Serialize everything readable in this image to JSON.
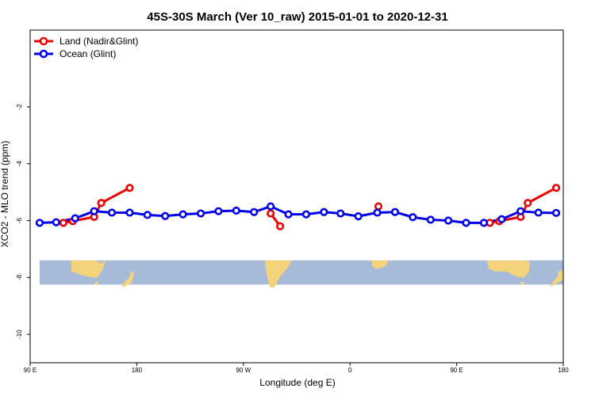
{
  "chart_data": {
    "type": "line",
    "title": "45S-30S March (Ver 10_raw)   2015-01-01 to 2020-12-31",
    "xlabel": "Longitude (deg E)",
    "ylabel": "XCO2 - MLO trend (ppm)",
    "xlim": [
      90,
      540
    ],
    "ylim": [
      -11,
      0.7
    ],
    "x_ticks": [
      {
        "value": 90,
        "label": "90 E"
      },
      {
        "value": 180,
        "label": "180"
      },
      {
        "value": 270,
        "label": "90 W"
      },
      {
        "value": 360,
        "label": "0"
      },
      {
        "value": 450,
        "label": "90 E"
      },
      {
        "value": 540,
        "label": "180"
      }
    ],
    "y_ticks": [
      {
        "value": -2,
        "label": "-2"
      },
      {
        "value": -4,
        "label": "-4"
      },
      {
        "value": -6,
        "label": "-6"
      },
      {
        "value": -8,
        "label": "-8"
      },
      {
        "value": -10,
        "label": "-10"
      }
    ],
    "map_band": {
      "ymin": -8.25,
      "ymax": -7.4
    },
    "legend_position": "top-left",
    "series": [
      {
        "name": "Land (Nadir&Glint)",
        "color": "#ee0000",
        "segments": [
          [
            [
              118,
              -6.08
            ],
            [
              126,
              -6.02
            ],
            [
              144,
              -5.87
            ],
            [
              150,
              -5.38
            ],
            [
              174,
              -4.85
            ]
          ],
          [
            [
              293,
              -5.75
            ],
            [
              301,
              -6.2
            ]
          ],
          [
            [
              384,
              -5.5
            ]
          ],
          [
            [
              478,
              -6.08
            ],
            [
              486,
              -6.02
            ],
            [
              504,
              -5.87
            ],
            [
              510,
              -5.38
            ],
            [
              534,
              -4.85
            ]
          ]
        ]
      },
      {
        "name": "Ocean (Glint)",
        "color": "#0000ee",
        "segments": [
          [
            [
              98,
              -6.08
            ],
            [
              112,
              -6.06
            ],
            [
              128,
              -5.92
            ],
            [
              144,
              -5.67
            ],
            [
              159,
              -5.72
            ],
            [
              174,
              -5.72
            ],
            [
              189,
              -5.8
            ],
            [
              204,
              -5.84
            ],
            [
              219,
              -5.78
            ],
            [
              234,
              -5.75
            ],
            [
              249,
              -5.67
            ],
            [
              264,
              -5.65
            ],
            [
              279,
              -5.7
            ],
            [
              293,
              -5.5
            ],
            [
              308,
              -5.78
            ],
            [
              323,
              -5.78
            ],
            [
              338,
              -5.7
            ],
            [
              352,
              -5.75
            ],
            [
              367,
              -5.85
            ],
            [
              383,
              -5.72
            ],
            [
              398,
              -5.7
            ],
            [
              413,
              -5.88
            ],
            [
              428,
              -5.97
            ],
            [
              443,
              -6.0
            ],
            [
              458,
              -6.08
            ],
            [
              473,
              -6.08
            ],
            [
              488,
              -5.95
            ],
            [
              504,
              -5.67
            ],
            [
              519,
              -5.72
            ],
            [
              534,
              -5.73
            ]
          ]
        ]
      }
    ]
  }
}
